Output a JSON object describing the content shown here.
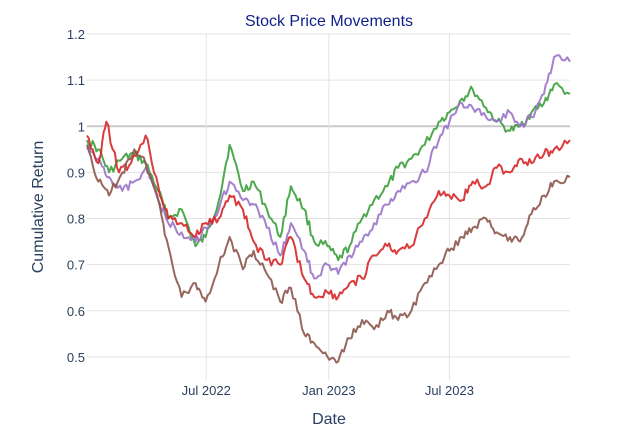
{
  "chart_data": {
    "type": "line",
    "title": "Stock Price Movements",
    "xlabel": "Date",
    "ylabel": "Cumulative Return",
    "x_range": [
      "2022-01-03",
      "2023-12-29"
    ],
    "xtick_labels": [
      "Jul 2022",
      "Jan 2023",
      "Jul 2023"
    ],
    "xtick_dates": [
      "2022-07-01",
      "2023-01-01",
      "2023-07-01"
    ],
    "ylim": [
      0.45,
      1.2
    ],
    "yticks": [
      0.5,
      0.6,
      0.7,
      0.8,
      0.9,
      1,
      1.1,
      1.2
    ],
    "ytick_labels": [
      "0.5",
      "0.6",
      "0.7",
      "0.8",
      "0.9",
      "1",
      "1.1",
      "1.2"
    ],
    "grid": true,
    "legend": "none",
    "series": [
      {
        "name": "green",
        "color": "#3ba03b",
        "x": [
          "2022-01-03",
          "2022-01-20",
          "2022-02-05",
          "2022-02-25",
          "2022-03-15",
          "2022-04-01",
          "2022-04-20",
          "2022-05-05",
          "2022-05-25",
          "2022-06-15",
          "2022-06-30",
          "2022-07-20",
          "2022-08-05",
          "2022-08-25",
          "2022-09-10",
          "2022-09-30",
          "2022-10-20",
          "2022-11-05",
          "2022-11-25",
          "2022-12-10",
          "2022-12-30",
          "2023-01-15",
          "2023-02-01",
          "2023-02-20",
          "2023-03-10",
          "2023-03-30",
          "2023-04-15",
          "2023-05-05",
          "2023-05-25",
          "2023-06-15",
          "2023-07-01",
          "2023-07-20",
          "2023-08-05",
          "2023-08-25",
          "2023-09-10",
          "2023-09-30",
          "2023-10-15",
          "2023-11-01",
          "2023-11-20",
          "2023-12-05",
          "2023-12-29"
        ],
        "values": [
          0.97,
          0.95,
          0.9,
          0.93,
          0.94,
          0.92,
          0.86,
          0.8,
          0.82,
          0.74,
          0.76,
          0.84,
          0.96,
          0.86,
          0.88,
          0.82,
          0.76,
          0.87,
          0.82,
          0.75,
          0.74,
          0.71,
          0.74,
          0.8,
          0.84,
          0.87,
          0.91,
          0.93,
          0.96,
          1.01,
          1.03,
          1.06,
          1.08,
          1.04,
          1.01,
          0.99,
          1.0,
          1.03,
          1.05,
          1.09,
          1.07
        ]
      },
      {
        "name": "purple",
        "color": "#9a73c6",
        "x": [
          "2022-01-03",
          "2022-01-20",
          "2022-02-05",
          "2022-02-25",
          "2022-03-15",
          "2022-04-01",
          "2022-04-20",
          "2022-05-05",
          "2022-05-25",
          "2022-06-15",
          "2022-06-30",
          "2022-07-20",
          "2022-08-05",
          "2022-08-25",
          "2022-09-10",
          "2022-09-30",
          "2022-10-20",
          "2022-11-05",
          "2022-11-25",
          "2022-12-10",
          "2022-12-30",
          "2023-01-15",
          "2023-02-01",
          "2023-02-20",
          "2023-03-10",
          "2023-03-30",
          "2023-04-15",
          "2023-05-05",
          "2023-05-25",
          "2023-06-15",
          "2023-07-01",
          "2023-07-20",
          "2023-08-05",
          "2023-08-25",
          "2023-09-10",
          "2023-09-30",
          "2023-10-15",
          "2023-11-01",
          "2023-11-20",
          "2023-12-05",
          "2023-12-29"
        ],
        "values": [
          0.95,
          0.93,
          0.89,
          0.86,
          0.88,
          0.91,
          0.84,
          0.79,
          0.77,
          0.75,
          0.78,
          0.82,
          0.88,
          0.84,
          0.83,
          0.78,
          0.72,
          0.79,
          0.73,
          0.67,
          0.7,
          0.68,
          0.72,
          0.75,
          0.79,
          0.83,
          0.86,
          0.88,
          0.9,
          0.97,
          1.01,
          1.05,
          1.04,
          1.02,
          1.01,
          1.03,
          1.0,
          1.02,
          1.07,
          1.15,
          1.14
        ]
      },
      {
        "name": "red",
        "color": "#d62728",
        "x": [
          "2022-01-03",
          "2022-01-20",
          "2022-02-01",
          "2022-02-20",
          "2022-03-10",
          "2022-04-01",
          "2022-04-20",
          "2022-05-05",
          "2022-05-25",
          "2022-06-15",
          "2022-06-30",
          "2022-07-20",
          "2022-08-05",
          "2022-08-25",
          "2022-09-10",
          "2022-09-30",
          "2022-10-20",
          "2022-11-05",
          "2022-11-25",
          "2022-12-10",
          "2022-12-30",
          "2023-01-15",
          "2023-02-01",
          "2023-02-20",
          "2023-03-10",
          "2023-03-30",
          "2023-04-15",
          "2023-05-05",
          "2023-05-25",
          "2023-06-15",
          "2023-07-01",
          "2023-07-20",
          "2023-08-05",
          "2023-08-25",
          "2023-09-10",
          "2023-09-30",
          "2023-10-15",
          "2023-11-01",
          "2023-11-20",
          "2023-12-05",
          "2023-12-29"
        ],
        "values": [
          0.98,
          0.92,
          1.01,
          0.9,
          0.92,
          0.98,
          0.87,
          0.8,
          0.79,
          0.76,
          0.79,
          0.8,
          0.85,
          0.82,
          0.75,
          0.71,
          0.7,
          0.76,
          0.67,
          0.63,
          0.64,
          0.63,
          0.66,
          0.67,
          0.72,
          0.74,
          0.73,
          0.74,
          0.8,
          0.86,
          0.85,
          0.84,
          0.88,
          0.87,
          0.91,
          0.9,
          0.93,
          0.92,
          0.94,
          0.95,
          0.97
        ]
      },
      {
        "name": "brown",
        "color": "#8c564b",
        "x": [
          "2022-01-03",
          "2022-01-20",
          "2022-02-05",
          "2022-02-25",
          "2022-03-15",
          "2022-04-01",
          "2022-04-20",
          "2022-05-05",
          "2022-05-25",
          "2022-06-15",
          "2022-06-30",
          "2022-07-20",
          "2022-08-05",
          "2022-08-25",
          "2022-09-10",
          "2022-09-30",
          "2022-10-20",
          "2022-11-05",
          "2022-11-25",
          "2022-12-10",
          "2022-12-30",
          "2023-01-15",
          "2023-02-01",
          "2023-02-20",
          "2023-03-10",
          "2023-03-30",
          "2023-04-15",
          "2023-05-05",
          "2023-05-25",
          "2023-06-15",
          "2023-07-01",
          "2023-07-20",
          "2023-08-05",
          "2023-08-25",
          "2023-09-10",
          "2023-09-30",
          "2023-10-15",
          "2023-11-01",
          "2023-11-20",
          "2023-12-05",
          "2023-12-29"
        ],
        "values": [
          0.96,
          0.88,
          0.85,
          0.9,
          0.95,
          0.92,
          0.84,
          0.74,
          0.63,
          0.66,
          0.62,
          0.7,
          0.76,
          0.69,
          0.73,
          0.68,
          0.62,
          0.65,
          0.55,
          0.53,
          0.5,
          0.49,
          0.54,
          0.58,
          0.56,
          0.6,
          0.58,
          0.6,
          0.66,
          0.7,
          0.73,
          0.76,
          0.78,
          0.8,
          0.77,
          0.76,
          0.75,
          0.81,
          0.85,
          0.88,
          0.89
        ]
      }
    ]
  }
}
